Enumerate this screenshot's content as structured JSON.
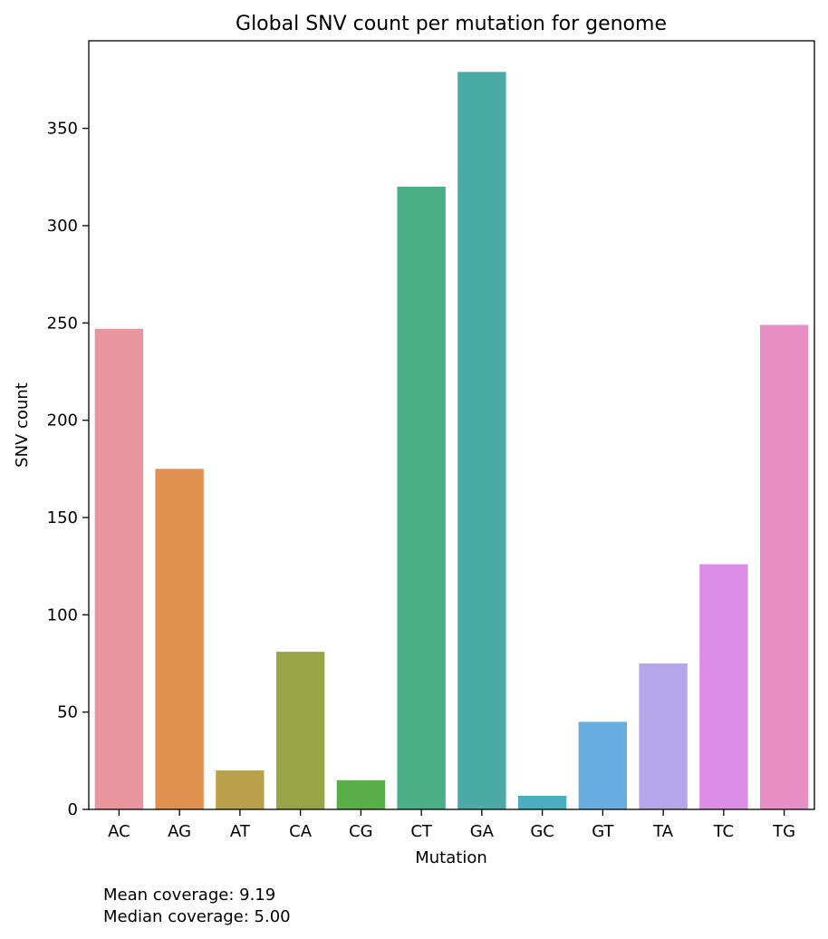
{
  "chart_data": {
    "type": "bar",
    "title": "Global SNV count per mutation for genome",
    "xlabel": "Mutation",
    "ylabel": "SNV count",
    "categories": [
      "AC",
      "AG",
      "AT",
      "CA",
      "CG",
      "CT",
      "GA",
      "GC",
      "GT",
      "TA",
      "TC",
      "TG"
    ],
    "values": [
      247,
      175,
      20,
      81,
      15,
      320,
      379,
      7,
      45,
      75,
      126,
      249
    ],
    "colors": [
      "#e9969f",
      "#e1914f",
      "#baa04b",
      "#98a546",
      "#5aae4a",
      "#4aae86",
      "#4aaba6",
      "#4cadc0",
      "#68ade0",
      "#b5a6ea",
      "#dc8ee7",
      "#e890c5"
    ],
    "ylim": [
      0,
      395
    ],
    "yticks": [
      0,
      50,
      100,
      150,
      200,
      250,
      300,
      350
    ],
    "grid": false,
    "legend": "none"
  },
  "notes": {
    "mean_coverage": "Mean coverage: 9.19",
    "median_coverage": "Median coverage: 5.00"
  }
}
